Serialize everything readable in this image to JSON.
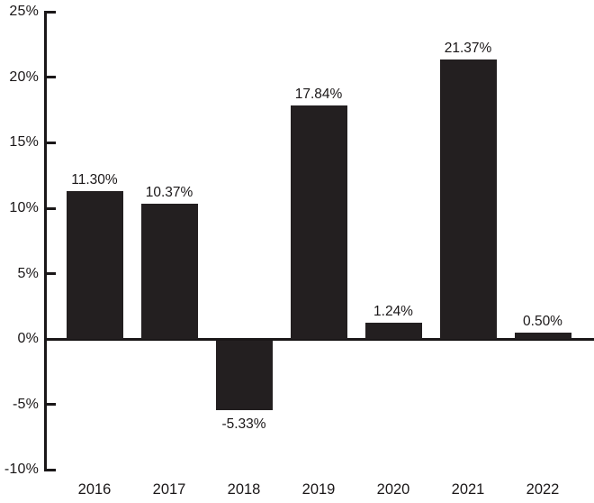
{
  "chart_data": {
    "type": "bar",
    "title": "",
    "xlabel": "",
    "ylabel": "",
    "categories": [
      "2016",
      "2017",
      "2018",
      "2019",
      "2020",
      "2021",
      "2022"
    ],
    "values": [
      11.3,
      10.37,
      -5.33,
      17.84,
      1.24,
      21.37,
      0.5
    ],
    "value_labels": [
      "11.30%",
      "10.37%",
      "-5.33%",
      "17.84%",
      "1.24%",
      "21.37%",
      "0.50%"
    ],
    "ylim": [
      -10,
      25
    ],
    "ytick_step": 5,
    "yticks": [
      25,
      20,
      15,
      10,
      5,
      0,
      -5,
      -10
    ],
    "ytick_labels": [
      "25%",
      "20%",
      "15%",
      "10%",
      "5%",
      "0%",
      "-5%",
      "-10%"
    ],
    "grid": false,
    "legend": null,
    "colors": {
      "bar": "#231f20",
      "axis": "#1a1718",
      "text": "#1a1718",
      "background": "#ffffff"
    }
  }
}
